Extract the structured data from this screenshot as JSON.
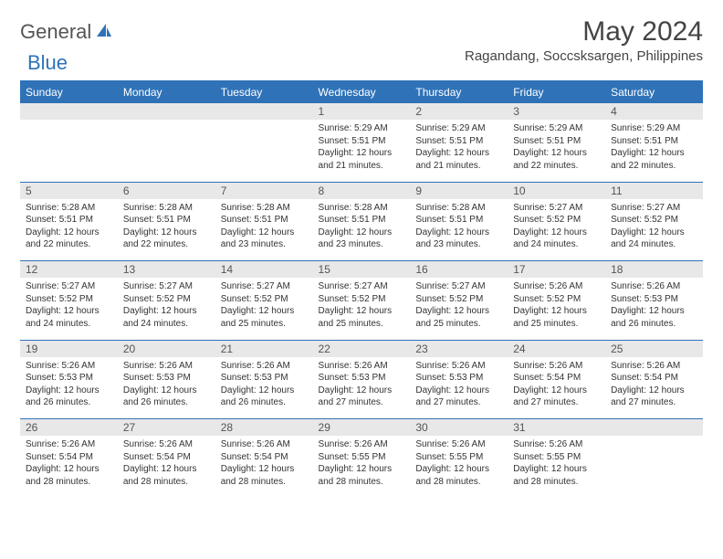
{
  "brand": {
    "part1": "General",
    "part2": "Blue"
  },
  "title": "May 2024",
  "location": "Ragandang, Soccsksargen, Philippines",
  "colors": {
    "accent": "#2f72b8",
    "header_text": "#ffffff",
    "daynum_bg": "#e8e8e8",
    "text": "#333333"
  },
  "day_names": [
    "Sunday",
    "Monday",
    "Tuesday",
    "Wednesday",
    "Thursday",
    "Friday",
    "Saturday"
  ],
  "weeks": [
    [
      null,
      null,
      null,
      {
        "n": "1",
        "sr": "5:29 AM",
        "ss": "5:51 PM",
        "dl": "12 hours and 21 minutes."
      },
      {
        "n": "2",
        "sr": "5:29 AM",
        "ss": "5:51 PM",
        "dl": "12 hours and 21 minutes."
      },
      {
        "n": "3",
        "sr": "5:29 AM",
        "ss": "5:51 PM",
        "dl": "12 hours and 22 minutes."
      },
      {
        "n": "4",
        "sr": "5:29 AM",
        "ss": "5:51 PM",
        "dl": "12 hours and 22 minutes."
      }
    ],
    [
      {
        "n": "5",
        "sr": "5:28 AM",
        "ss": "5:51 PM",
        "dl": "12 hours and 22 minutes."
      },
      {
        "n": "6",
        "sr": "5:28 AM",
        "ss": "5:51 PM",
        "dl": "12 hours and 22 minutes."
      },
      {
        "n": "7",
        "sr": "5:28 AM",
        "ss": "5:51 PM",
        "dl": "12 hours and 23 minutes."
      },
      {
        "n": "8",
        "sr": "5:28 AM",
        "ss": "5:51 PM",
        "dl": "12 hours and 23 minutes."
      },
      {
        "n": "9",
        "sr": "5:28 AM",
        "ss": "5:51 PM",
        "dl": "12 hours and 23 minutes."
      },
      {
        "n": "10",
        "sr": "5:27 AM",
        "ss": "5:52 PM",
        "dl": "12 hours and 24 minutes."
      },
      {
        "n": "11",
        "sr": "5:27 AM",
        "ss": "5:52 PM",
        "dl": "12 hours and 24 minutes."
      }
    ],
    [
      {
        "n": "12",
        "sr": "5:27 AM",
        "ss": "5:52 PM",
        "dl": "12 hours and 24 minutes."
      },
      {
        "n": "13",
        "sr": "5:27 AM",
        "ss": "5:52 PM",
        "dl": "12 hours and 24 minutes."
      },
      {
        "n": "14",
        "sr": "5:27 AM",
        "ss": "5:52 PM",
        "dl": "12 hours and 25 minutes."
      },
      {
        "n": "15",
        "sr": "5:27 AM",
        "ss": "5:52 PM",
        "dl": "12 hours and 25 minutes."
      },
      {
        "n": "16",
        "sr": "5:27 AM",
        "ss": "5:52 PM",
        "dl": "12 hours and 25 minutes."
      },
      {
        "n": "17",
        "sr": "5:26 AM",
        "ss": "5:52 PM",
        "dl": "12 hours and 25 minutes."
      },
      {
        "n": "18",
        "sr": "5:26 AM",
        "ss": "5:53 PM",
        "dl": "12 hours and 26 minutes."
      }
    ],
    [
      {
        "n": "19",
        "sr": "5:26 AM",
        "ss": "5:53 PM",
        "dl": "12 hours and 26 minutes."
      },
      {
        "n": "20",
        "sr": "5:26 AM",
        "ss": "5:53 PM",
        "dl": "12 hours and 26 minutes."
      },
      {
        "n": "21",
        "sr": "5:26 AM",
        "ss": "5:53 PM",
        "dl": "12 hours and 26 minutes."
      },
      {
        "n": "22",
        "sr": "5:26 AM",
        "ss": "5:53 PM",
        "dl": "12 hours and 27 minutes."
      },
      {
        "n": "23",
        "sr": "5:26 AM",
        "ss": "5:53 PM",
        "dl": "12 hours and 27 minutes."
      },
      {
        "n": "24",
        "sr": "5:26 AM",
        "ss": "5:54 PM",
        "dl": "12 hours and 27 minutes."
      },
      {
        "n": "25",
        "sr": "5:26 AM",
        "ss": "5:54 PM",
        "dl": "12 hours and 27 minutes."
      }
    ],
    [
      {
        "n": "26",
        "sr": "5:26 AM",
        "ss": "5:54 PM",
        "dl": "12 hours and 28 minutes."
      },
      {
        "n": "27",
        "sr": "5:26 AM",
        "ss": "5:54 PM",
        "dl": "12 hours and 28 minutes."
      },
      {
        "n": "28",
        "sr": "5:26 AM",
        "ss": "5:54 PM",
        "dl": "12 hours and 28 minutes."
      },
      {
        "n": "29",
        "sr": "5:26 AM",
        "ss": "5:55 PM",
        "dl": "12 hours and 28 minutes."
      },
      {
        "n": "30",
        "sr": "5:26 AM",
        "ss": "5:55 PM",
        "dl": "12 hours and 28 minutes."
      },
      {
        "n": "31",
        "sr": "5:26 AM",
        "ss": "5:55 PM",
        "dl": "12 hours and 28 minutes."
      },
      null
    ]
  ],
  "labels": {
    "sunrise": "Sunrise:",
    "sunset": "Sunset:",
    "daylight": "Daylight:"
  }
}
